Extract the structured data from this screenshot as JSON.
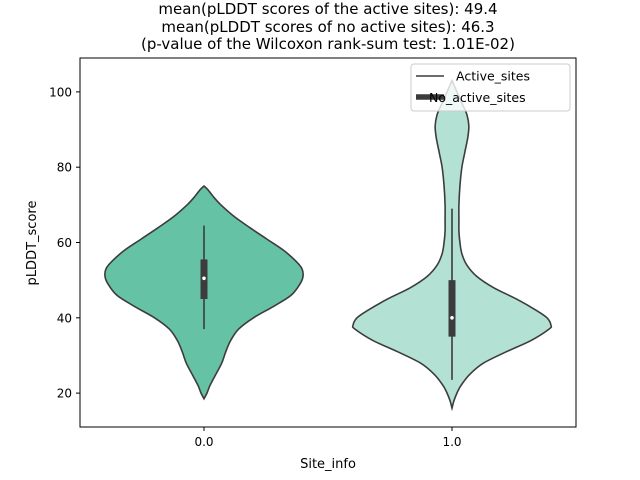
{
  "chart_data": {
    "type": "violin",
    "title_lines": [
      "mean(pLDDT scores of the active sites): 49.4",
      "mean(pLDDT scores of no active sites): 46.3",
      "(p-value of the Wilcoxon rank-sum test: 1.01E-02)"
    ],
    "xlabel": "Site_info",
    "ylabel": "pLDDT_score",
    "categories": [
      "0.0",
      "1.0"
    ],
    "ylim": [
      11,
      109
    ],
    "yticks": [
      20,
      40,
      60,
      80,
      100
    ],
    "legend": {
      "location": "top-right",
      "entries": [
        {
          "label": "Active_sites",
          "style": "thin-line"
        },
        {
          "label": "No_active_sites",
          "style": "thick-line"
        }
      ]
    },
    "colors": {
      "violin_0": "#66c2a5",
      "violin_1": "#b3e2d5",
      "edge": "#3c3c3c",
      "box": "#3c3c3c"
    },
    "violins": [
      {
        "category": "0.0",
        "density_profile": [
          [
            18.5,
            0.0
          ],
          [
            20,
            0.03
          ],
          [
            22,
            0.06
          ],
          [
            25,
            0.12
          ],
          [
            28,
            0.18
          ],
          [
            31,
            0.22
          ],
          [
            34,
            0.27
          ],
          [
            37,
            0.35
          ],
          [
            40,
            0.5
          ],
          [
            43,
            0.7
          ],
          [
            46,
            0.88
          ],
          [
            49,
            0.97
          ],
          [
            51,
            1.0
          ],
          [
            53,
            0.99
          ],
          [
            55,
            0.93
          ],
          [
            58,
            0.8
          ],
          [
            61,
            0.63
          ],
          [
            64,
            0.46
          ],
          [
            67,
            0.3
          ],
          [
            70,
            0.17
          ],
          [
            72,
            0.1
          ],
          [
            74,
            0.04
          ],
          [
            75,
            0.0
          ]
        ],
        "whisker_low": 37,
        "q1": 45,
        "median": 50.5,
        "q3": 55.5,
        "whisker_high": 64.5
      },
      {
        "category": "1.0",
        "density_profile": [
          [
            16,
            0.0
          ],
          [
            18,
            0.02
          ],
          [
            20,
            0.05
          ],
          [
            22,
            0.09
          ],
          [
            25,
            0.18
          ],
          [
            28,
            0.32
          ],
          [
            31,
            0.55
          ],
          [
            34,
            0.8
          ],
          [
            37,
            0.98
          ],
          [
            38,
            1.0
          ],
          [
            40,
            0.96
          ],
          [
            42,
            0.85
          ],
          [
            45,
            0.65
          ],
          [
            48,
            0.42
          ],
          [
            51,
            0.25
          ],
          [
            54,
            0.15
          ],
          [
            57,
            0.1
          ],
          [
            60,
            0.08
          ],
          [
            63,
            0.07
          ],
          [
            66,
            0.07
          ],
          [
            70,
            0.07
          ],
          [
            75,
            0.08
          ],
          [
            80,
            0.1
          ],
          [
            84,
            0.13
          ],
          [
            88,
            0.16
          ],
          [
            91,
            0.17
          ],
          [
            94,
            0.15
          ],
          [
            97,
            0.1
          ],
          [
            100,
            0.05
          ],
          [
            103,
            0.0
          ]
        ],
        "whisker_low": 23.5,
        "q1": 35,
        "median": 40,
        "q3": 50,
        "whisker_high": 69
      }
    ]
  }
}
